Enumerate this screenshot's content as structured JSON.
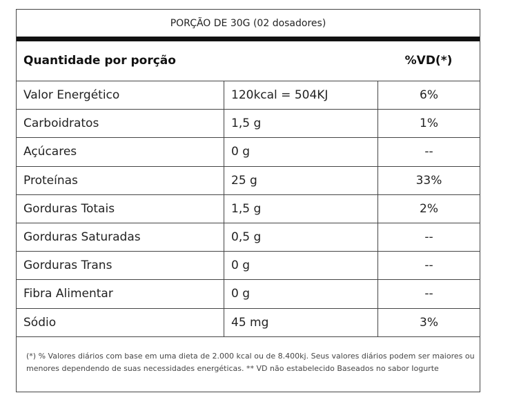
{
  "table": {
    "serving": "PORÇÃO DE 30G (02 dosadores)",
    "header": {
      "quantity_label": "Quantidade por porção",
      "vd_label": "%VD(*)"
    },
    "rows": [
      {
        "name": "Valor Energético",
        "amount": "120kcal = 504KJ",
        "vd": "6%"
      },
      {
        "name": "Carboidratos",
        "amount": "1,5 g",
        "vd": "1%"
      },
      {
        "name": "Açúcares",
        "amount": "0 g",
        "vd": "--"
      },
      {
        "name": "Proteínas",
        "amount": "25 g",
        "vd": "33%"
      },
      {
        "name": "Gorduras Totais",
        "amount": "1,5 g",
        "vd": "2%"
      },
      {
        "name": "Gorduras Saturadas",
        "amount": "0,5 g",
        "vd": "--"
      },
      {
        "name": "Gorduras Trans",
        "amount": "0 g",
        "vd": "--"
      },
      {
        "name": "Fibra Alimentar",
        "amount": "0 g",
        "vd": "--"
      },
      {
        "name": "Sódio",
        "amount": "45 mg",
        "vd": "3%"
      }
    ],
    "footnote": "(*) % Valores diários com base em uma dieta de 2.000 kcal ou de 8.400kj. Seus valores diários podem ser maiores ou menores dependendo de suas necessidades energéticas. ** VD não estabelecido Baseados no sabor Iogurte"
  }
}
